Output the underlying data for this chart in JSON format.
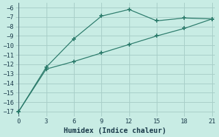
{
  "line1_x": [
    0,
    3,
    6,
    9,
    12,
    15,
    18,
    21
  ],
  "line1_y": [
    -17,
    -12.3,
    -9.3,
    -6.9,
    -6.2,
    -7.4,
    -7.1,
    -7.2
  ],
  "line2_x": [
    0,
    3,
    6,
    9,
    12,
    15,
    18,
    21
  ],
  "line2_y": [
    -17,
    -12.5,
    -11.7,
    -10.8,
    -9.9,
    -9.0,
    -8.2,
    -7.2
  ],
  "line_color": "#2a7a6a",
  "bg_color": "#c8ece4",
  "grid_color": "#a8cec8",
  "xlabel": "Humidex (Indice chaleur)",
  "ylim": [
    -17.5,
    -5.5
  ],
  "xlim": [
    -0.3,
    21.3
  ],
  "yticks": [
    -17,
    -16,
    -15,
    -14,
    -13,
    -12,
    -11,
    -10,
    -9,
    -8,
    -7,
    -6
  ],
  "xticks": [
    0,
    3,
    6,
    9,
    12,
    15,
    18,
    21
  ],
  "font_color": "#1a3a4a",
  "tick_fontsize": 6.5,
  "xlabel_fontsize": 7.5
}
